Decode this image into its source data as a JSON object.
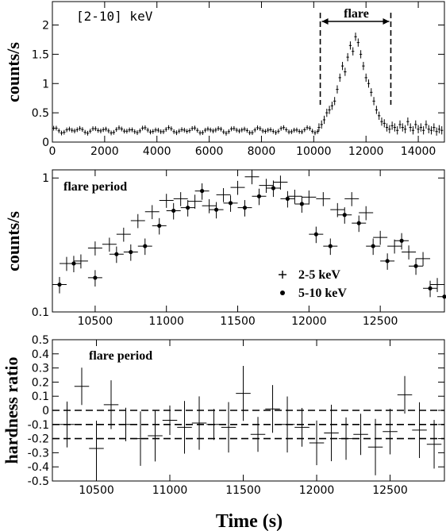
{
  "chart_data": [
    {
      "type": "scatter",
      "panel": "top",
      "annotation": "[2-10] keV",
      "flare_label": "flare",
      "flare_interval": [
        10250,
        12950
      ],
      "ylabel": "counts/s",
      "xlim": [
        0,
        15000
      ],
      "ylim": [
        0,
        2.4
      ],
      "xticks": [
        0,
        2000,
        4000,
        6000,
        8000,
        10000,
        12000,
        14000
      ],
      "yticks": [
        0,
        0.5,
        1,
        1.5,
        2
      ],
      "ytick_labels": [
        "0",
        "0.5",
        "1",
        "1.5",
        "2"
      ],
      "grid": false,
      "series": [
        {
          "marker": "cross",
          "baseline_x_range": [
            0,
            10200
          ],
          "baseline_bin": 100,
          "baseline_level": 0.2,
          "x": [
            10200,
            10300,
            10400,
            10500,
            10600,
            10700,
            10800,
            10900,
            11000,
            11100,
            11200,
            11300,
            11400,
            11500,
            11600,
            11700,
            11800,
            11900,
            12000,
            12100,
            12200,
            12300,
            12400,
            12500,
            12600,
            12700,
            12800,
            12900,
            13000,
            13100,
            13200,
            13300,
            13400,
            13500,
            13600,
            13700,
            13800,
            13900,
            14000,
            14100,
            14200,
            14300,
            14400,
            14500,
            14600,
            14700,
            14800,
            14900
          ],
          "y": [
            0.25,
            0.3,
            0.38,
            0.5,
            0.55,
            0.62,
            0.7,
            0.9,
            1.1,
            1.3,
            1.2,
            1.45,
            1.65,
            1.55,
            1.8,
            1.7,
            1.5,
            1.3,
            1.1,
            1.0,
            0.85,
            0.7,
            0.55,
            0.45,
            0.35,
            0.32,
            0.25,
            0.22,
            0.28,
            0.25,
            0.2,
            0.3,
            0.25,
            0.22,
            0.35,
            0.25,
            0.2,
            0.3,
            0.22,
            0.25,
            0.2,
            0.3,
            0.22,
            0.2,
            0.25,
            0.18,
            0.22,
            0.2
          ]
        }
      ]
    },
    {
      "type": "scatter",
      "panel": "middle",
      "annotation": "flare period",
      "ylabel": "counts/s",
      "xlim": [
        10200,
        12950
      ],
      "ylim": [
        0.1,
        1.15
      ],
      "yscale": "log",
      "xticks": [
        10500,
        11000,
        11500,
        12000,
        12500
      ],
      "yticks": [
        0.1,
        1
      ],
      "ytick_labels": [
        "0.1",
        "1"
      ],
      "grid": false,
      "legend_position": "lower-right",
      "series": [
        {
          "name": "2-5 keV",
          "marker": "cross",
          "x": [
            10300,
            10400,
            10500,
            10600,
            10700,
            10800,
            10900,
            11000,
            11100,
            11200,
            11300,
            11400,
            11500,
            11600,
            11700,
            11800,
            11900,
            12000,
            12100,
            12200,
            12300,
            12400,
            12500,
            12600,
            12700,
            12800,
            12900
          ],
          "y": [
            0.23,
            0.24,
            0.3,
            0.32,
            0.38,
            0.48,
            0.56,
            0.68,
            0.7,
            0.67,
            0.62,
            0.75,
            0.85,
            1.02,
            0.88,
            0.93,
            0.73,
            0.72,
            0.7,
            0.58,
            0.7,
            0.55,
            0.36,
            0.31,
            0.28,
            0.25,
            0.16
          ]
        },
        {
          "name": "5-10 keV",
          "marker": "dot",
          "x": [
            10250,
            10350,
            10500,
            10650,
            10750,
            10850,
            10950,
            11050,
            11150,
            11250,
            11350,
            11450,
            11550,
            11650,
            11750,
            11850,
            11950,
            12050,
            12150,
            12250,
            12350,
            12450,
            12550,
            12650,
            12750,
            12850,
            12950
          ],
          "y": [
            0.16,
            0.23,
            0.18,
            0.27,
            0.28,
            0.31,
            0.44,
            0.57,
            0.6,
            0.8,
            0.58,
            0.65,
            0.6,
            0.73,
            0.84,
            0.7,
            0.64,
            0.38,
            0.31,
            0.53,
            0.46,
            0.31,
            0.24,
            0.34,
            0.22,
            0.15,
            0.13
          ]
        }
      ]
    },
    {
      "type": "scatter",
      "panel": "bottom",
      "annotation": "flare period",
      "ylabel": "hardness ratio",
      "xlabel": "Time (s)",
      "xlim": [
        10200,
        12870
      ],
      "ylim": [
        -0.5,
        0.5
      ],
      "xticks": [
        10500,
        11000,
        11500,
        12000,
        12500
      ],
      "yticks": [
        -0.5,
        -0.4,
        -0.3,
        -0.2,
        -0.1,
        0,
        0.1,
        0.2,
        0.3,
        0.4,
        0.5
      ],
      "ytick_labels": [
        "-0.5",
        "-0.4",
        "-0.3",
        "-0.2",
        "-0.1",
        "0",
        "0.1",
        "0.2",
        "0.3",
        "0.4",
        "0.5"
      ],
      "grid": false,
      "reference_lines": [
        {
          "y": 0.0,
          "style": "dashed"
        },
        {
          "y": -0.1,
          "style": "dashed"
        },
        {
          "y": -0.2,
          "style": "dashed"
        }
      ],
      "series": [
        {
          "marker": "cross",
          "x": [
            10300,
            10400,
            10500,
            10600,
            10700,
            10800,
            10900,
            11000,
            11100,
            11200,
            11300,
            11400,
            11500,
            11600,
            11700,
            11800,
            11900,
            12000,
            12100,
            12200,
            12300,
            12400,
            12500,
            12600,
            12700,
            12800
          ],
          "y": [
            -0.1,
            0.17,
            -0.27,
            0.04,
            -0.1,
            -0.2,
            -0.18,
            -0.07,
            -0.12,
            -0.09,
            -0.1,
            -0.12,
            0.12,
            -0.17,
            0.01,
            -0.1,
            -0.12,
            -0.23,
            -0.16,
            -0.2,
            -0.17,
            -0.26,
            -0.15,
            0.11,
            -0.14,
            -0.24
          ]
        }
      ]
    }
  ]
}
